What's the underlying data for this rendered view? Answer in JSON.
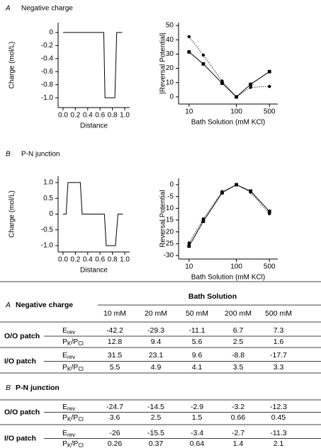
{
  "panels": [
    {
      "letter": "A",
      "title": "Negative charge"
    },
    {
      "letter": "B",
      "title": "P-N junction"
    }
  ],
  "chart_data": [
    {
      "type": "line",
      "y_label": "Charge (mol/L)",
      "x_label": "Distance",
      "x": [
        0,
        0.66,
        0.68,
        0.84,
        0.87,
        0.96
      ],
      "values": [
        0,
        0,
        -1,
        -1,
        0,
        0
      ],
      "color": "#000000",
      "xlim": [
        -0.08,
        1.08
      ],
      "xticks": [
        {
          "value": 0,
          "label": "0.0"
        },
        0.2,
        0.4,
        0.6,
        0.8,
        {
          "value": 1,
          "label": "1.0"
        }
      ],
      "ylim": [
        -1.15,
        0.15
      ],
      "yticks": [
        0,
        -0.2,
        -0.4,
        -0.6,
        -0.8,
        {
          "value": -1,
          "label": "-1.0"
        }
      ]
    },
    {
      "type": "line",
      "y_label": "|Reversal Potential|",
      "x_label": "Bath Solution (mM KCl)",
      "log_x": true,
      "x": [
        10,
        20,
        50,
        100,
        200,
        500
      ],
      "series": [
        {
          "color": "#000000",
          "marker": "circle",
          "line_style": "dotted",
          "values": [
            42.2,
            29.3,
            11.1,
            0,
            6.7,
            7.3
          ]
        },
        {
          "color": "#000000",
          "marker": "square",
          "line_style": "solid",
          "values": [
            31.5,
            23.1,
            9.6,
            0,
            8.8,
            17.7
          ]
        }
      ],
      "xlim": [
        6,
        750
      ],
      "xticks": [
        10,
        100,
        500
      ],
      "ylim": [
        -5,
        52
      ],
      "yticks": [
        0,
        10,
        20,
        30,
        40,
        50
      ]
    },
    {
      "type": "line",
      "y_label": "Charge (mol/L)",
      "x_label": "Distance",
      "x": [
        0,
        0.05,
        0.08,
        0.28,
        0.31,
        0.67,
        0.7,
        0.85,
        0.89,
        0.97
      ],
      "values": [
        0,
        0,
        1,
        1,
        0,
        0,
        -1,
        -1,
        0,
        0
      ],
      "color": "#000000",
      "xlim": [
        -0.08,
        1.08
      ],
      "xticks": [
        {
          "value": 0,
          "label": "0.0"
        },
        0.2,
        0.4,
        0.6,
        0.8,
        {
          "value": 1,
          "label": "1.0"
        }
      ],
      "ylim": [
        -1.2,
        1.2
      ],
      "yticks": [
        {
          "value": 1,
          "label": "1.0"
        },
        0.5,
        0,
        -0.5,
        {
          "value": -1,
          "label": "-1.0"
        }
      ]
    },
    {
      "type": "line",
      "y_label": "Reversal Potential",
      "x_label": "Bath Solution (mM KCl)",
      "log_x": true,
      "x": [
        10,
        20,
        50,
        100,
        200,
        500
      ],
      "series": [
        {
          "color": "#000000",
          "marker": "circle",
          "line_style": "dotted",
          "values": [
            -24.7,
            -14.5,
            -2.9,
            0,
            -3.2,
            -12.3
          ]
        },
        {
          "color": "#000000",
          "marker": "square",
          "line_style": "solid",
          "values": [
            -26,
            -15.5,
            -3.4,
            0,
            -2.7,
            -11.3
          ]
        }
      ],
      "xlim": [
        6,
        750
      ],
      "xticks": [
        10,
        100,
        500
      ],
      "ylim": [
        -31.5,
        2.7
      ],
      "yticks": [
        0,
        -5,
        -10,
        -15,
        -20,
        -25,
        -30
      ]
    }
  ],
  "table": {
    "header": "Bath Solution",
    "columns": [
      "10 mM",
      "20 mM",
      "50 mM",
      "200 mM",
      "500 mM"
    ],
    "sections": [
      {
        "letter": "A",
        "title": "Negative charge",
        "groups": [
          {
            "label": "O/O patch",
            "rows": [
              {
                "quantity": [
                  "E",
                  "rev"
                ],
                "values": [
                  "-42.2",
                  "-29.3",
                  "-11.1",
                  "6.7",
                  "7.3"
                ]
              },
              {
                "quantity": [
                  "P",
                  "K",
                  "/P",
                  "Cl"
                ],
                "values": [
                  "12.8",
                  "9.4",
                  "5.6",
                  "2.5",
                  "1.6"
                ]
              }
            ]
          },
          {
            "label": "I/O patch",
            "rows": [
              {
                "quantity": [
                  "E",
                  "rev"
                ],
                "values": [
                  "31.5",
                  "23.1",
                  "9.6",
                  "-8.8",
                  "-17.7"
                ]
              },
              {
                "quantity": [
                  "P",
                  "K",
                  "/P",
                  "Cl"
                ],
                "values": [
                  "5.5",
                  "4.9",
                  "4.1",
                  "3.5",
                  "3.3"
                ]
              }
            ]
          }
        ]
      },
      {
        "letter": "B",
        "title": "P-N junction",
        "groups": [
          {
            "label": "O/O patch",
            "rows": [
              {
                "quantity": [
                  "E",
                  "rev"
                ],
                "values": [
                  "-24.7",
                  "-14.5",
                  "-2.9",
                  "-3.2",
                  "-12.3"
                ]
              },
              {
                "quantity": [
                  "P",
                  "K",
                  "/P",
                  "Cl"
                ],
                "values": [
                  "3.6",
                  "2.5",
                  "1.5",
                  "0.66",
                  "0.45"
                ]
              }
            ]
          },
          {
            "label": "I/O patch",
            "rows": [
              {
                "quantity": [
                  "E",
                  "rev"
                ],
                "values": [
                  "-26",
                  "-15.5",
                  "-3.4",
                  "-2.7",
                  "-11.3"
                ]
              },
              {
                "quantity": [
                  "P",
                  "K",
                  "/P",
                  "Cl"
                ],
                "values": [
                  "0.26",
                  "0.37",
                  "0.64",
                  "1.4",
                  "2.1"
                ]
              }
            ]
          }
        ]
      }
    ]
  }
}
